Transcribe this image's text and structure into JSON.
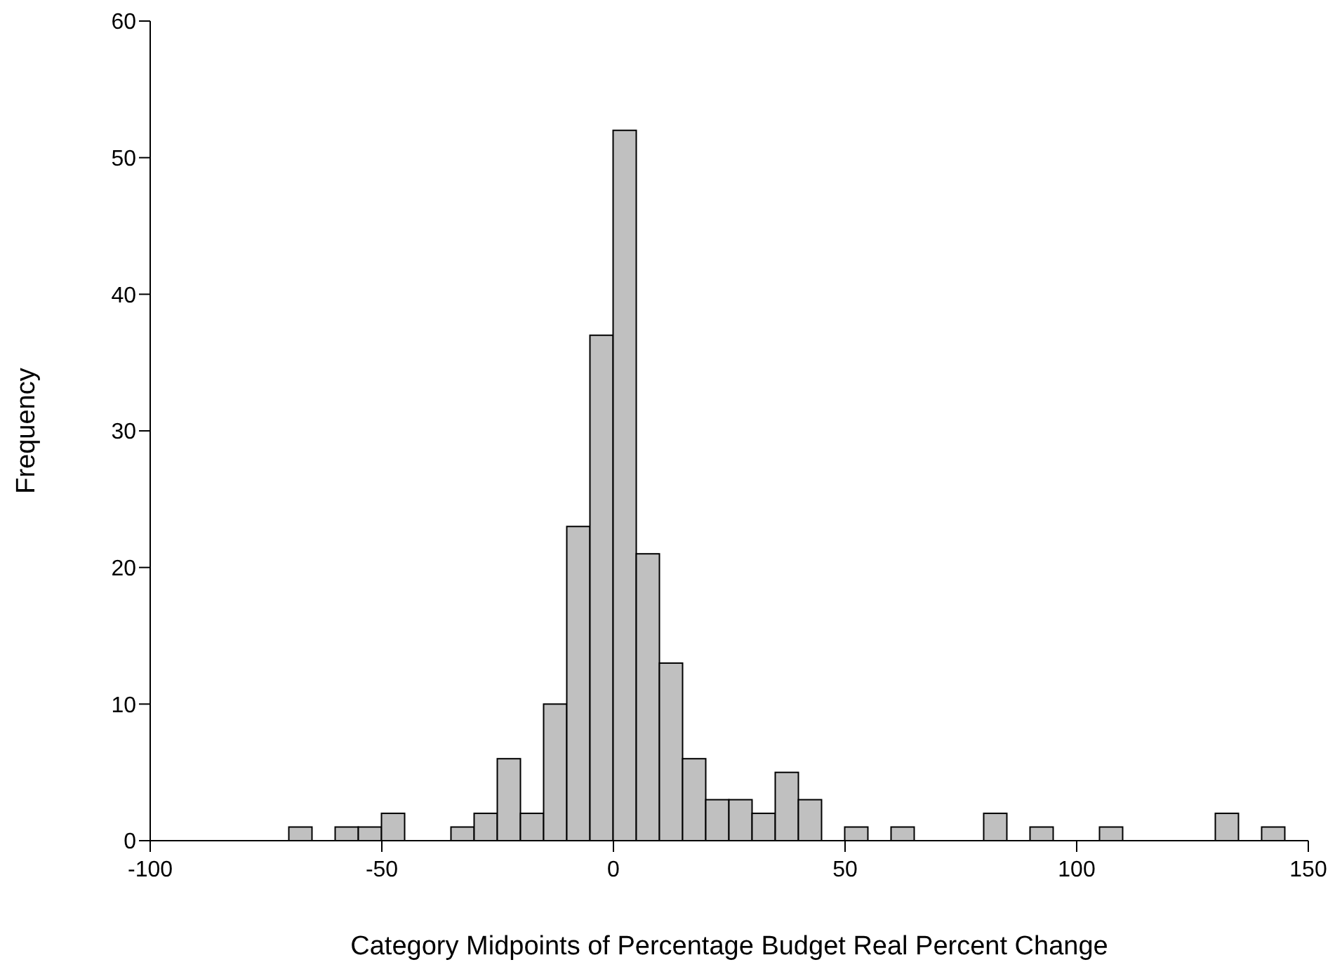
{
  "chart_data": {
    "type": "histogram",
    "xlabel": "Category Midpoints of Percentage Budget Real Percent Change",
    "ylabel": "Frequency",
    "bins": [
      -70,
      -65,
      -60,
      -55,
      -50,
      -45,
      -40,
      -35,
      -30,
      -25,
      -20,
      -15,
      -10,
      -5,
      0,
      5,
      10,
      15,
      20,
      25,
      30,
      35,
      40,
      45,
      50,
      55,
      60,
      65,
      70,
      75,
      80,
      85,
      90,
      95,
      100,
      105,
      110,
      115,
      120,
      125,
      130,
      135,
      140,
      145
    ],
    "values": [
      1,
      0,
      1,
      1,
      2,
      0,
      0,
      1,
      2,
      6,
      2,
      10,
      23,
      37,
      52,
      21,
      13,
      6,
      3,
      3,
      2,
      5,
      3,
      0,
      1,
      0,
      1,
      0,
      0,
      0,
      2,
      0,
      1,
      0,
      0,
      1,
      0,
      0,
      0,
      0,
      2,
      0,
      1
    ],
    "color": "#c0c0c0",
    "xlim": [
      -100,
      150
    ],
    "xticks": [
      -100,
      -50,
      0,
      50,
      100,
      150
    ],
    "ylim": [
      0,
      60
    ],
    "yticks": [
      0,
      10,
      20,
      30,
      40,
      50,
      60
    ],
    "grid": false,
    "legend": false
  }
}
